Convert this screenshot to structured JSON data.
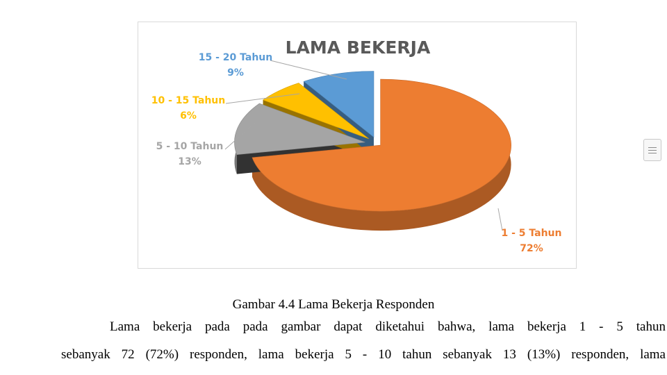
{
  "chart_data": {
    "type": "pie",
    "title": "LAMA BEKERJA",
    "categories": [
      "1 - 5 Tahun",
      "5 - 10 Tahun",
      "10 - 15 Tahun",
      "15 - 20 Tahun"
    ],
    "values": [
      72,
      13,
      6,
      9
    ],
    "percent_labels": [
      "72%",
      "13%",
      "6%",
      "9%"
    ],
    "colors": [
      "#ED7D31",
      "#A5A5A5",
      "#FFC000",
      "#5B9BD5"
    ],
    "exploded": true,
    "style": "3d"
  },
  "document": {
    "caption": "Gambar 4.4 Lama Bekerja Responden",
    "paragraph_line_1": "Lama bekerja pada pada gambar  dapat diketahui bahwa, lama bekerja 1 - 5 tahun",
    "paragraph_line_2": "sebanyak 72 (72%) responden, lama bekerja 5 - 10 tahun sebanyak 13 (13%) responden, lama"
  }
}
